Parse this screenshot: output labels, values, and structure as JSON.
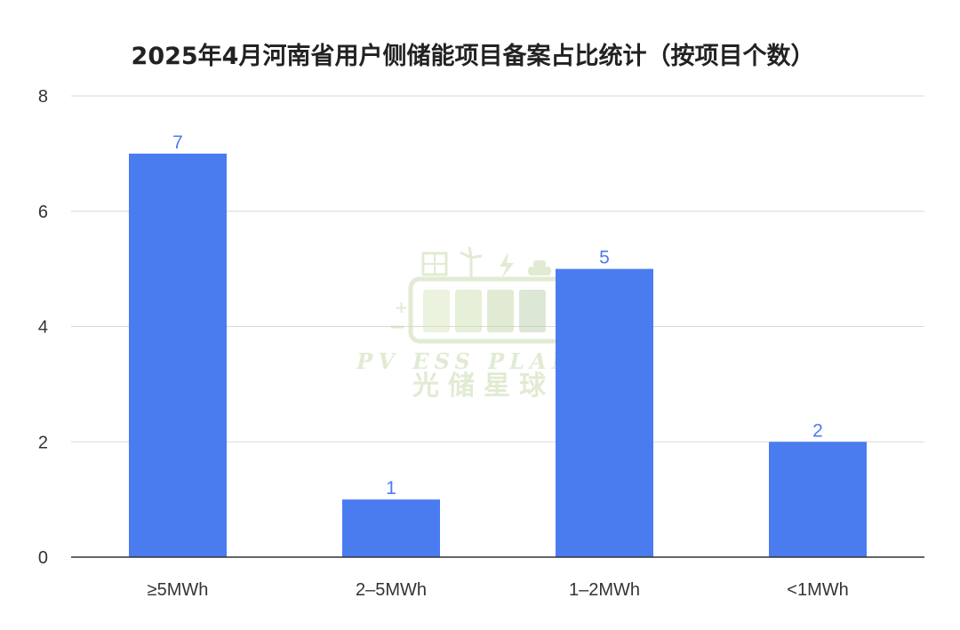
{
  "chart_data": {
    "type": "bar",
    "title": "2025年4月河南省用户侧储能项目备案占比统计（按项目个数）",
    "xlabel": "",
    "ylabel": "",
    "categories": [
      "≥5MWh",
      "2–5MWh",
      "1–2MWh",
      "<1MWh"
    ],
    "values": [
      7,
      1,
      5,
      2
    ],
    "ylim": [
      0,
      8
    ],
    "yticks": [
      0,
      2,
      4,
      6,
      8
    ],
    "grid": true,
    "legend": "none",
    "data_labels": true,
    "bar_color": "#4a7cf0",
    "label_color": "#4a7cf0"
  },
  "watermark": {
    "text_en": "PV ESS PLANET",
    "text_cn": "光储星球",
    "color": "#c9dcb0",
    "logo_icon": "battery-solar-wind-logo-icon"
  }
}
